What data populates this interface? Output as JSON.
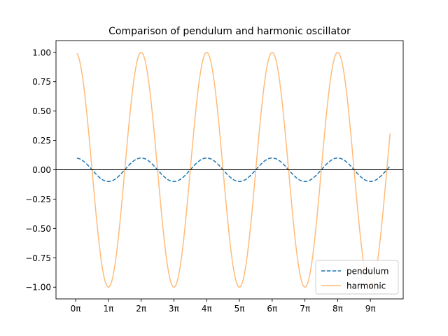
{
  "chart_data": {
    "type": "line",
    "title": "Comparison of pendulum and harmonic oscillator",
    "xlabel": "",
    "ylabel": "",
    "xlim": [
      -0.6,
      10.0
    ],
    "ylim": [
      -1.1,
      1.1
    ],
    "x_unit": "π",
    "x_range": [
      0.04,
      9.6
    ],
    "xticks": [
      0,
      1,
      2,
      3,
      4,
      5,
      6,
      7,
      8,
      9
    ],
    "xtick_labels": [
      "0π",
      "1π",
      "2π",
      "3π",
      "4π",
      "5π",
      "6π",
      "7π",
      "8π",
      "9π"
    ],
    "yticks": [
      -1.0,
      -0.75,
      -0.5,
      -0.25,
      0.0,
      0.25,
      0.5,
      0.75,
      1.0
    ],
    "ytick_labels": [
      "−1.00",
      "−0.75",
      "−0.50",
      "−0.25",
      "0.00",
      "0.25",
      "0.50",
      "0.75",
      "1.00"
    ],
    "grid": false,
    "reference_line": {
      "y": 0,
      "color": "#000000"
    },
    "legend_position": "lower right",
    "series": [
      {
        "name": "pendulum",
        "style": "dashed",
        "color": "#1f77b4",
        "amplitude": 0.1,
        "period_pi": 2.0,
        "phase_pi": 0.0,
        "key_points": [
          [
            0,
            0.1
          ],
          [
            0.5,
            0.0
          ],
          [
            1,
            -0.1
          ],
          [
            1.5,
            0.0
          ],
          [
            2,
            0.1
          ],
          [
            3,
            -0.1
          ],
          [
            4,
            0.1
          ],
          [
            5,
            -0.1
          ],
          [
            6,
            0.1
          ],
          [
            7,
            -0.1
          ],
          [
            8,
            0.1
          ],
          [
            9,
            -0.1
          ],
          [
            9.5,
            0.0
          ]
        ]
      },
      {
        "name": "harmonic",
        "style": "solid",
        "color": "#ffbb78",
        "amplitude": 1.0,
        "period_pi": 2.0,
        "phase_pi": 0.0,
        "key_points": [
          [
            0,
            1.0
          ],
          [
            0.5,
            0.0
          ],
          [
            1,
            -1.0
          ],
          [
            1.5,
            0.0
          ],
          [
            2,
            1.0
          ],
          [
            3,
            -1.0
          ],
          [
            4,
            1.0
          ],
          [
            5,
            -1.0
          ],
          [
            6,
            1.0
          ],
          [
            7,
            -1.0
          ],
          [
            8,
            1.0
          ],
          [
            9,
            -1.0
          ],
          [
            9.6,
            0.15
          ]
        ]
      }
    ]
  }
}
